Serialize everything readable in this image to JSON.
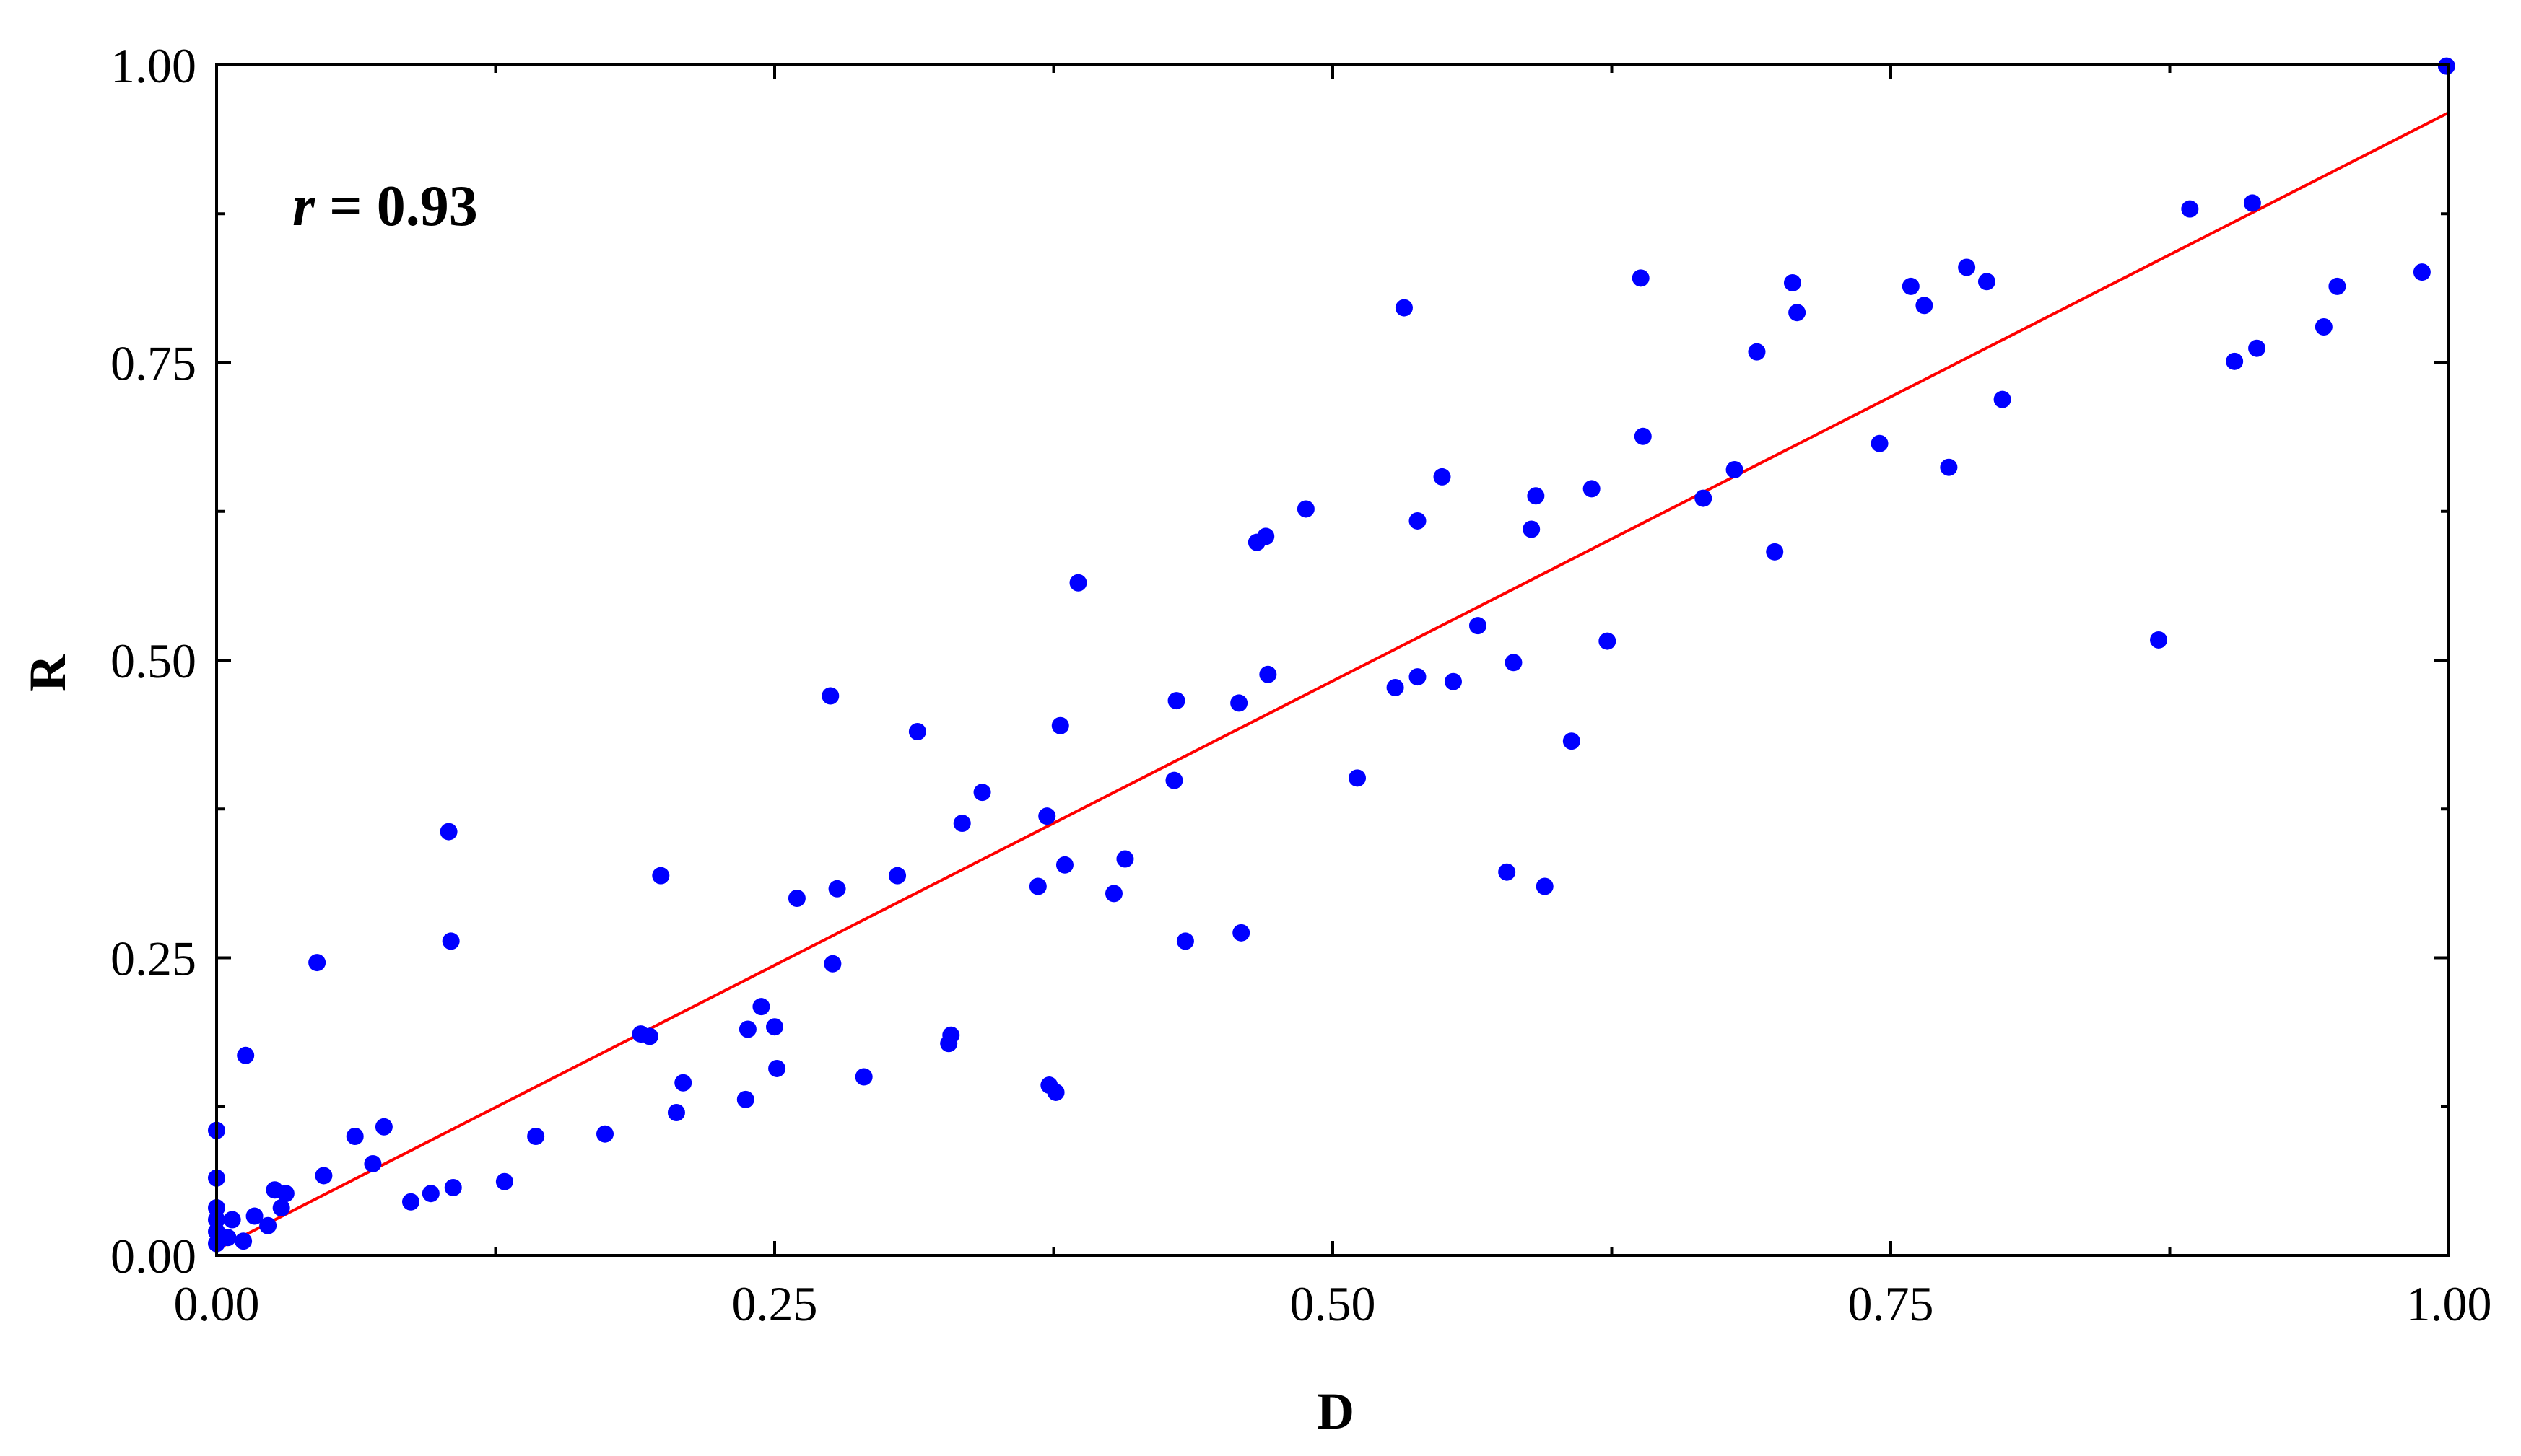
{
  "chart_data": {
    "type": "scatter",
    "title": "",
    "xlabel": "D",
    "ylabel": "R",
    "xlim": [
      0,
      1
    ],
    "ylim": [
      0,
      1
    ],
    "x_ticks": [
      "0.00",
      "0.25",
      "0.50",
      "0.75",
      "1.00"
    ],
    "y_ticks": [
      "0.00",
      "0.25",
      "0.50",
      "0.75",
      "1.00"
    ],
    "grid": false,
    "annotation": {
      "var": "r",
      "rest": " = 0.93"
    },
    "point_color": "#0000ff",
    "line_color": "#ff0000",
    "fit_line": {
      "slope": 0.955,
      "intercept": 0.005
    },
    "points": [
      [
        0.0,
        0.01
      ],
      [
        0.0,
        0.02
      ],
      [
        0.0,
        0.03
      ],
      [
        0.0,
        0.04
      ],
      [
        0.0,
        0.065
      ],
      [
        0.0,
        0.105
      ],
      [
        0.005,
        0.015
      ],
      [
        0.007,
        0.03
      ],
      [
        0.012,
        0.012
      ],
      [
        0.013,
        0.168
      ],
      [
        0.017,
        0.033
      ],
      [
        0.023,
        0.025
      ],
      [
        0.026,
        0.055
      ],
      [
        0.029,
        0.04
      ],
      [
        0.031,
        0.052
      ],
      [
        0.045,
        0.246
      ],
      [
        0.048,
        0.067
      ],
      [
        0.062,
        0.1
      ],
      [
        0.07,
        0.077
      ],
      [
        0.075,
        0.108
      ],
      [
        0.087,
        0.045
      ],
      [
        0.096,
        0.052
      ],
      [
        0.104,
        0.356
      ],
      [
        0.105,
        0.264
      ],
      [
        0.106,
        0.057
      ],
      [
        0.129,
        0.062
      ],
      [
        0.143,
        0.1
      ],
      [
        0.174,
        0.102
      ],
      [
        0.19,
        0.186
      ],
      [
        0.194,
        0.184
      ],
      [
        0.199,
        0.319
      ],
      [
        0.206,
        0.12
      ],
      [
        0.209,
        0.145
      ],
      [
        0.237,
        0.131
      ],
      [
        0.238,
        0.19
      ],
      [
        0.244,
        0.209
      ],
      [
        0.25,
        0.192
      ],
      [
        0.251,
        0.157
      ],
      [
        0.26,
        0.3
      ],
      [
        0.275,
        0.47
      ],
      [
        0.276,
        0.245
      ],
      [
        0.278,
        0.308
      ],
      [
        0.29,
        0.15
      ],
      [
        0.305,
        0.319
      ],
      [
        0.314,
        0.44
      ],
      [
        0.328,
        0.178
      ],
      [
        0.329,
        0.185
      ],
      [
        0.334,
        0.363
      ],
      [
        0.343,
        0.389
      ],
      [
        0.368,
        0.31
      ],
      [
        0.372,
        0.369
      ],
      [
        0.373,
        0.143
      ],
      [
        0.376,
        0.137
      ],
      [
        0.378,
        0.445
      ],
      [
        0.38,
        0.328
      ],
      [
        0.386,
        0.565
      ],
      [
        0.402,
        0.304
      ],
      [
        0.407,
        0.333
      ],
      [
        0.429,
        0.399
      ],
      [
        0.43,
        0.466
      ],
      [
        0.434,
        0.264
      ],
      [
        0.458,
        0.464
      ],
      [
        0.459,
        0.271
      ],
      [
        0.466,
        0.599
      ],
      [
        0.47,
        0.604
      ],
      [
        0.471,
        0.488
      ],
      [
        0.488,
        0.627
      ],
      [
        0.511,
        0.401
      ],
      [
        0.528,
        0.477
      ],
      [
        0.532,
        0.796
      ],
      [
        0.538,
        0.486
      ],
      [
        0.538,
        0.617
      ],
      [
        0.549,
        0.654
      ],
      [
        0.554,
        0.482
      ],
      [
        0.565,
        0.529
      ],
      [
        0.578,
        0.322
      ],
      [
        0.581,
        0.498
      ],
      [
        0.589,
        0.61
      ],
      [
        0.591,
        0.638
      ],
      [
        0.595,
        0.31
      ],
      [
        0.607,
        0.432
      ],
      [
        0.616,
        0.644
      ],
      [
        0.623,
        0.516
      ],
      [
        0.638,
        0.821
      ],
      [
        0.639,
        0.688
      ],
      [
        0.666,
        0.636
      ],
      [
        0.68,
        0.66
      ],
      [
        0.69,
        0.759
      ],
      [
        0.698,
        0.591
      ],
      [
        0.706,
        0.817
      ],
      [
        0.708,
        0.792
      ],
      [
        0.745,
        0.682
      ],
      [
        0.759,
        0.814
      ],
      [
        0.765,
        0.798
      ],
      [
        0.776,
        0.662
      ],
      [
        0.784,
        0.83
      ],
      [
        0.793,
        0.818
      ],
      [
        0.8,
        0.719
      ],
      [
        0.87,
        0.517
      ],
      [
        0.884,
        0.879
      ],
      [
        0.904,
        0.751
      ],
      [
        0.912,
        0.884
      ],
      [
        0.914,
        0.762
      ],
      [
        0.944,
        0.78
      ],
      [
        0.95,
        0.814
      ],
      [
        0.988,
        0.826
      ],
      [
        0.999,
        0.999
      ]
    ]
  }
}
